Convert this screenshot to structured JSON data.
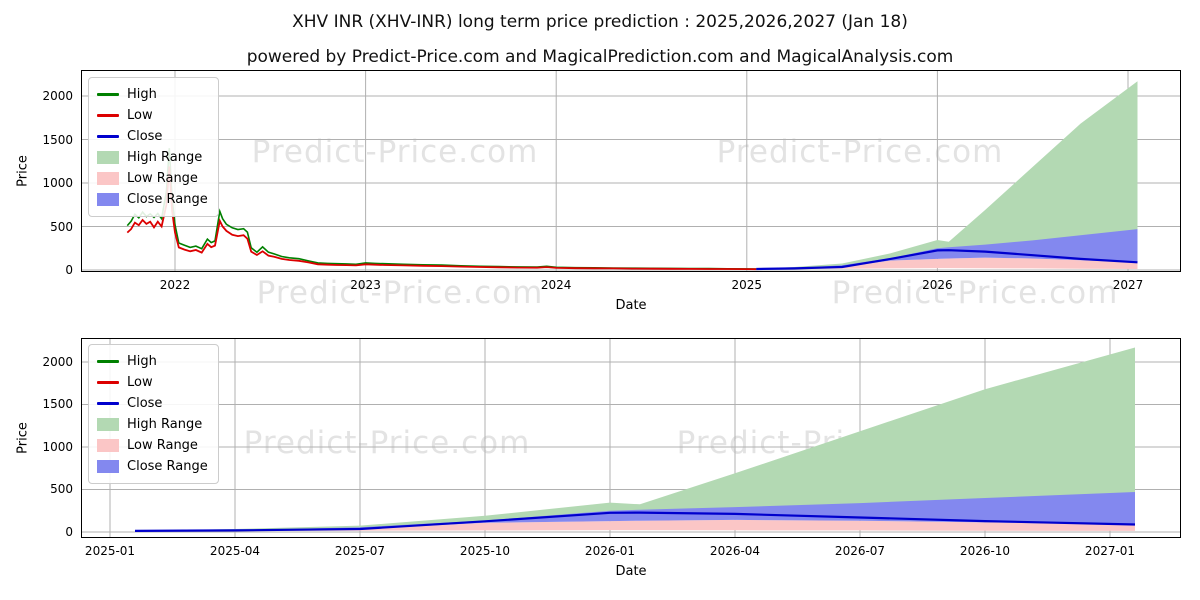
{
  "title": "XHV INR (XHV-INR) long term price prediction : 2025,2026,2027 (Jan 18)",
  "subtitle": "powered by Predict-Price.com and MagicalPrediction.com and MagicalAnalysis.com",
  "watermark_text": "Predict-Price.com",
  "colors": {
    "high_line": "#008000",
    "low_line": "#dc0000",
    "close_line": "#0000cd",
    "high_fill": "#b3d9b3",
    "low_fill": "#fbc6c6",
    "close_fill": "#8388ef",
    "grid": "#b0b0b0",
    "watermark": "#e3e3e3"
  },
  "legend_items": [
    {
      "label": "High",
      "type": "line",
      "color_key": "high_line"
    },
    {
      "label": "Low",
      "type": "line",
      "color_key": "low_line"
    },
    {
      "label": "Close",
      "type": "line",
      "color_key": "close_line"
    },
    {
      "label": "High Range",
      "type": "patch",
      "color_key": "high_fill"
    },
    {
      "label": "Low Range",
      "type": "patch",
      "color_key": "low_fill"
    },
    {
      "label": "Close Range",
      "type": "patch",
      "color_key": "close_fill"
    }
  ],
  "chart_data": {
    "type": "line",
    "history": {
      "x": [
        2021.75,
        2021.77,
        2021.79,
        2021.81,
        2021.83,
        2021.85,
        2021.87,
        2021.89,
        2021.91,
        2021.93,
        2021.955,
        2021.97,
        2021.985,
        2022.0,
        2022.02,
        2022.05,
        2022.08,
        2022.11,
        2022.14,
        2022.17,
        2022.19,
        2022.21,
        2022.235,
        2022.25,
        2022.27,
        2022.3,
        2022.33,
        2022.36,
        2022.38,
        2022.4,
        2022.43,
        2022.46,
        2022.49,
        2022.52,
        2022.56,
        2022.6,
        2022.65,
        2022.7,
        2022.75,
        2022.8,
        2022.85,
        2022.9,
        2022.95,
        2023.0,
        2023.05,
        2023.1,
        2023.2,
        2023.3,
        2023.4,
        2023.5,
        2023.6,
        2023.7,
        2023.8,
        2023.9,
        2023.95,
        2024.0,
        2024.1,
        2024.2,
        2024.3,
        2024.4,
        2024.5,
        2024.6,
        2024.7,
        2024.8,
        2024.9,
        2025.0,
        2025.05
      ],
      "high": [
        510,
        560,
        640,
        600,
        665,
        615,
        645,
        605,
        650,
        590,
        900,
        1400,
        820,
        520,
        310,
        285,
        260,
        275,
        245,
        355,
        315,
        335,
        675,
        590,
        525,
        485,
        465,
        475,
        435,
        255,
        205,
        265,
        205,
        185,
        155,
        140,
        130,
        105,
        82,
        76,
        72,
        70,
        66,
        82,
        76,
        72,
        66,
        60,
        56,
        48,
        43,
        39,
        36,
        33,
        42,
        31,
        27,
        25,
        23,
        21,
        19,
        18,
        17,
        16,
        14,
        13,
        12
      ],
      "low": [
        430,
        470,
        545,
        515,
        575,
        530,
        555,
        490,
        555,
        500,
        750,
        1190,
        680,
        430,
        260,
        235,
        215,
        230,
        200,
        300,
        262,
        280,
        565,
        500,
        450,
        405,
        390,
        400,
        360,
        212,
        172,
        215,
        165,
        152,
        128,
        115,
        106,
        87,
        66,
        61,
        58,
        56,
        53,
        66,
        61,
        58,
        53,
        48,
        45,
        39,
        35,
        31,
        28,
        26,
        33,
        24,
        21,
        19,
        18,
        16,
        15,
        14,
        13,
        12,
        11,
        10,
        9
      ]
    },
    "prediction": {
      "x": [
        2025.05,
        2025.25,
        2025.5,
        2025.75,
        2026.0,
        2026.06,
        2026.25,
        2026.5,
        2026.75,
        2027.05
      ],
      "close": [
        12,
        18,
        35,
        125,
        225,
        228,
        212,
        170,
        128,
        88
      ],
      "high_range_top": [
        12,
        35,
        75,
        190,
        345,
        325,
        690,
        1185,
        1680,
        2170
      ],
      "close_range_top": [
        12,
        20,
        55,
        135,
        250,
        262,
        292,
        340,
        400,
        470
      ],
      "close_range_bottom": [
        12,
        16,
        30,
        108,
        128,
        132,
        142,
        132,
        112,
        86
      ],
      "low_range_bottom": [
        10,
        12,
        15,
        18,
        22,
        22,
        20,
        18,
        15,
        12
      ]
    },
    "charts": [
      {
        "name": "overview",
        "xlabel": "Date",
        "ylabel": "Price",
        "xlim": [
          2021.507,
          2027.278
        ],
        "ylim": [
          -23,
          2299
        ],
        "x_ticks": [
          {
            "v": 2022,
            "label": "2022"
          },
          {
            "v": 2023,
            "label": "2023"
          },
          {
            "v": 2024,
            "label": "2024"
          },
          {
            "v": 2025,
            "label": "2025"
          },
          {
            "v": 2026,
            "label": "2026"
          },
          {
            "v": 2027,
            "label": "2027"
          }
        ],
        "y_ticks": [
          {
            "v": 0,
            "label": "0"
          },
          {
            "v": 500,
            "label": "500"
          },
          {
            "v": 1000,
            "label": "1000"
          },
          {
            "v": 1500,
            "label": "1500"
          },
          {
            "v": 2000,
            "label": "2000"
          }
        ],
        "show_history": true,
        "grid": true,
        "legend_position": "upper left"
      },
      {
        "name": "prediction-detail",
        "xlabel": "Date",
        "ylabel": "Price",
        "xlim": [
          2024.942,
          2027.142
        ],
        "ylim": [
          -71,
          2282
        ],
        "x_ticks": [
          {
            "v": 2025.0,
            "label": "2025-01"
          },
          {
            "v": 2025.25,
            "label": "2025-04"
          },
          {
            "v": 2025.5,
            "label": "2025-07"
          },
          {
            "v": 2025.75,
            "label": "2025-10"
          },
          {
            "v": 2026.0,
            "label": "2026-01"
          },
          {
            "v": 2026.25,
            "label": "2026-04"
          },
          {
            "v": 2026.5,
            "label": "2026-07"
          },
          {
            "v": 2026.75,
            "label": "2026-10"
          },
          {
            "v": 2027.0,
            "label": "2027-01"
          }
        ],
        "y_ticks": [
          {
            "v": 0,
            "label": "0"
          },
          {
            "v": 500,
            "label": "500"
          },
          {
            "v": 1000,
            "label": "1000"
          },
          {
            "v": 1500,
            "label": "1500"
          },
          {
            "v": 2000,
            "label": "2000"
          }
        ],
        "show_history": false,
        "grid": true,
        "legend_position": "upper left"
      }
    ]
  }
}
